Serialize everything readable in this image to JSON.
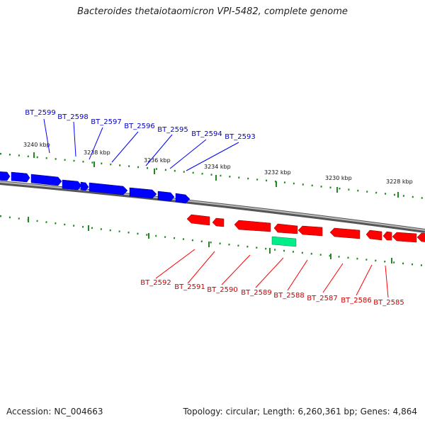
{
  "title": "Bacteroides thetaiotaomicron VPI-5482, complete genome",
  "footer": {
    "accession_label": "Accession:",
    "accession": "NC_004663",
    "topology_label": "Topology:",
    "topology": "circular;",
    "length_label": "Length:",
    "length": "6,260,361 bp;",
    "genes_label": "Genes:",
    "genes": "4,864"
  },
  "colors": {
    "forward_gene": "#0000ff",
    "reverse_gene": "#ff0000",
    "rna_gene": "#00ee88",
    "tick": "#228822",
    "backbone": "#888888"
  },
  "scale_ticks": [
    "3240 kbp",
    "3238 kbp",
    "3236 kbp",
    "3234 kbp",
    "3232 kbp",
    "3230 kbp",
    "3228 kbp"
  ],
  "forward_labels": [
    "BT_2599",
    "BT_2598",
    "BT_2597",
    "BT_2596",
    "BT_2595",
    "BT_2594",
    "BT_2593"
  ],
  "reverse_labels": [
    "BT_2592",
    "BT_2591",
    "BT_2590",
    "BT_2589",
    "BT_2588",
    "BT_2587",
    "BT_2586",
    "BT_2585"
  ]
}
